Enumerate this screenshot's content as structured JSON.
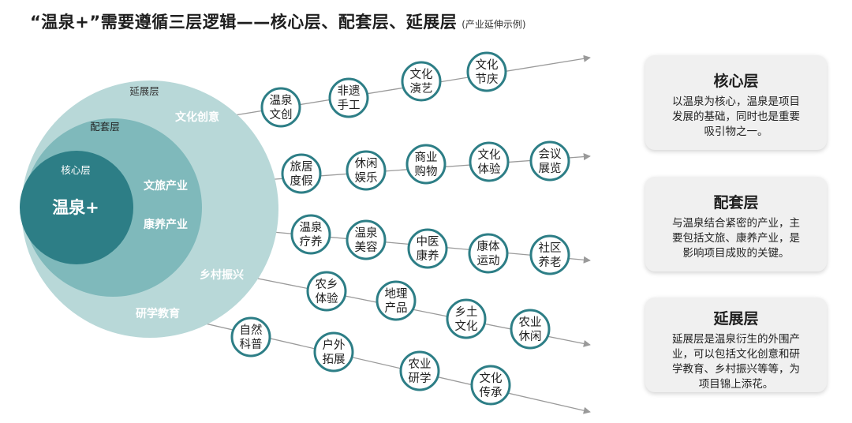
{
  "title": {
    "main": "“温泉+”需要遵循三层逻辑——核心层、配套层、延展层",
    "sub": "(产业延伸示例)"
  },
  "colors": {
    "outer_circle": "#b8d8d8",
    "middle_circle": "#7fb9bb",
    "inner_circle": "#2d7e86",
    "node_border": "#2d7e86",
    "line": "#9a9a9a"
  },
  "circles": {
    "outer_label": "延展层",
    "middle_label": "配套层",
    "inner_label": "核心层",
    "center_text": "温泉+"
  },
  "branches": [
    {
      "label": "文化创意",
      "nodes": [
        [
          "温泉",
          "文创"
        ],
        [
          "非遗",
          "手工"
        ],
        [
          "文化",
          "演艺"
        ],
        [
          "文化",
          "节庆"
        ]
      ]
    },
    {
      "label": "文旅产业",
      "nodes": [
        [
          "旅居",
          "度假"
        ],
        [
          "休闲",
          "娱乐"
        ],
        [
          "商业",
          "购物"
        ],
        [
          "文化",
          "体验"
        ],
        [
          "会议",
          "展览"
        ]
      ]
    },
    {
      "label": "康养产业",
      "nodes": [
        [
          "温泉",
          "疗养"
        ],
        [
          "温泉",
          "美容"
        ],
        [
          "中医",
          "康养"
        ],
        [
          "康体",
          "运动"
        ],
        [
          "社区",
          "养老"
        ]
      ]
    },
    {
      "label": "乡村振兴",
      "nodes": [
        [
          "农乡",
          "体验"
        ],
        [
          "地理",
          "产品"
        ],
        [
          "乡土",
          "文化"
        ],
        [
          "农业",
          "休闲"
        ]
      ]
    },
    {
      "label": "研学教育",
      "nodes": [
        [
          "自然",
          "科普"
        ],
        [
          "户外",
          "拓展"
        ],
        [
          "农业",
          "研学"
        ],
        [
          "文化",
          "传承"
        ]
      ]
    }
  ],
  "cards": [
    {
      "title": "核心层",
      "lines": [
        "以温泉为核心，温泉是项目",
        "发展的基础，同时也是重要",
        "吸引物之一。"
      ]
    },
    {
      "title": "配套层",
      "lines": [
        "与温泉结合紧密的产业，主",
        "要包括文旅、康养产业，是",
        "影响项目成败的关键。"
      ]
    },
    {
      "title": "延展层",
      "lines": [
        "延展层是温泉衍生的外围产",
        "业，可以包括文化创意和研",
        "学教育、乡村振兴等等，为",
        "项目锦上添花。"
      ]
    }
  ]
}
